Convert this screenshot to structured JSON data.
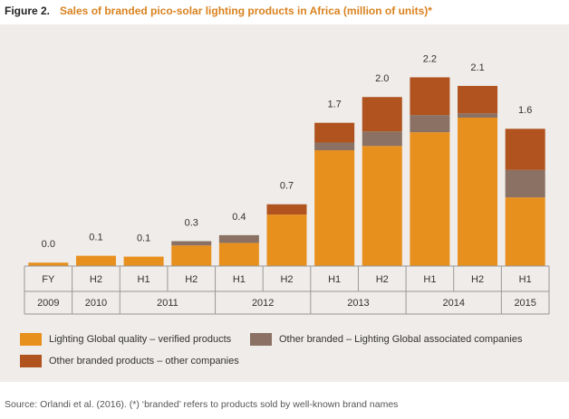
{
  "chart_data": {
    "type": "stacked_bar",
    "title_label": "Figure 2.",
    "title": "Sales of branded pico-solar lighting products in Africa (million of units)*",
    "categories": [
      "FY",
      "H2",
      "H1",
      "H2",
      "H1",
      "H2",
      "H1",
      "H2",
      "H1",
      "H2",
      "H1"
    ],
    "year_groups": [
      {
        "label": "2009",
        "span": 1
      },
      {
        "label": "2010",
        "span": 1
      },
      {
        "label": "2011",
        "span": 2
      },
      {
        "label": "2012",
        "span": 2
      },
      {
        "label": "2013",
        "span": 2
      },
      {
        "label": "2014",
        "span": 2
      },
      {
        "label": "2015",
        "span": 1
      }
    ],
    "series": [
      {
        "name": "Lighting Global quality – verified products",
        "color": "#e8901e",
        "values": [
          0.04,
          0.12,
          0.11,
          0.24,
          0.27,
          0.6,
          1.35,
          1.4,
          1.56,
          1.73,
          0.8
        ]
      },
      {
        "name": "Other branded – Lighting Global associated companies",
        "color": "#8a7163",
        "values": [
          0,
          0,
          0,
          0.05,
          0.09,
          0,
          0.09,
          0.17,
          0.2,
          0.05,
          0.32
        ]
      },
      {
        "name": "Other branded products – other companies",
        "color": "#b0531f",
        "values": [
          0,
          0,
          0,
          0,
          0,
          0.12,
          0.23,
          0.4,
          0.44,
          0.32,
          0.48
        ]
      }
    ],
    "totals": [
      0.04,
      0.12,
      0.11,
      0.29,
      0.36,
      0.72,
      1.67,
      1.97,
      2.2,
      2.1,
      1.6
    ],
    "total_labels": [
      "0.0",
      "0.1",
      "0.1",
      "0.3",
      "0.4",
      "0.7",
      "1.7",
      "2.0",
      "2.2",
      "2.1",
      "1.6"
    ],
    "ylim": [
      0,
      2.5
    ],
    "source": "Source: Orlandi et al. (2016). (*) ‘branded’ refers to products sold by well-known brand names"
  }
}
